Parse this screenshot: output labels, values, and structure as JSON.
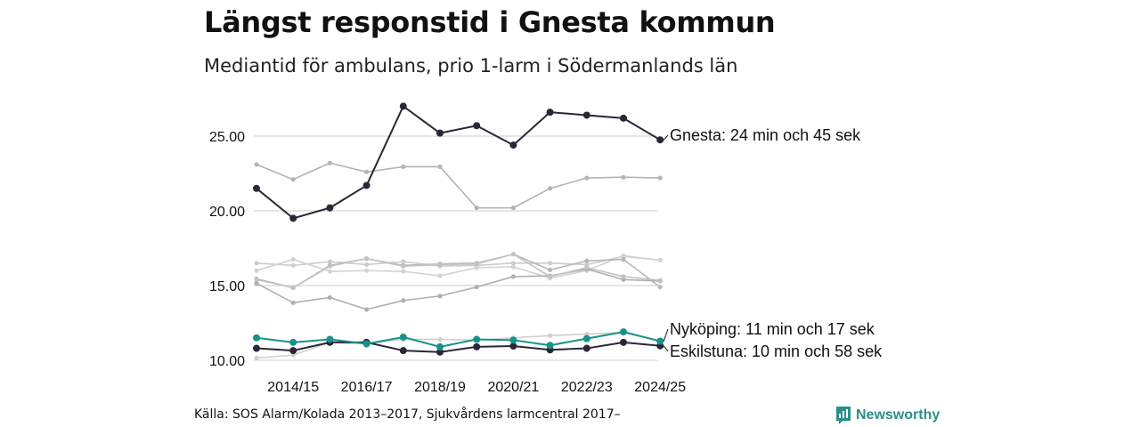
{
  "chart_data": {
    "type": "line",
    "title": "Längst responstid i Gnesta kommun",
    "subtitle": "Mediantid för ambulans, prio 1-larm i Södermanlands län",
    "xlabel": "",
    "ylabel": "",
    "ylim": [
      9.5,
      27.5
    ],
    "yticks": [
      "10.00",
      "15.00",
      "20.00",
      "25.00"
    ],
    "x": [
      "2013/14",
      "2014/15",
      "2015/16",
      "2016/17",
      "2017/18",
      "2018/19",
      "2019/20",
      "2020/21",
      "2021/22",
      "2022/23",
      "2023/24",
      "2024/25"
    ],
    "xtick_labels": [
      "2014/15",
      "2016/17",
      "2018/19",
      "2020/21",
      "2022/23",
      "2024/25"
    ],
    "highlighted": [
      {
        "name": "Gnesta",
        "label": "Gnesta: 24 min och 45 sek",
        "color": "#2a2838",
        "values": [
          21.5,
          19.5,
          20.2,
          21.7,
          27.0,
          25.2,
          25.7,
          24.4,
          26.6,
          26.4,
          26.2,
          24.75
        ]
      },
      {
        "name": "Nyköping",
        "label": "Nyköping: 11 min och 17 sek",
        "color": "#179288",
        "values": [
          11.5,
          11.2,
          11.4,
          11.1,
          11.55,
          10.9,
          11.4,
          11.35,
          11.0,
          11.45,
          11.9,
          11.28
        ]
      },
      {
        "name": "Eskilstuna",
        "label": "Eskilstuna: 10 min och 58 sek",
        "color": "#2a2838",
        "values": [
          10.8,
          10.65,
          11.2,
          11.2,
          10.65,
          10.55,
          10.9,
          10.95,
          10.7,
          10.8,
          11.2,
          10.97
        ]
      }
    ],
    "other_series": [
      {
        "values": [
          23.1,
          22.1,
          23.2,
          22.6,
          22.95,
          22.95,
          20.2,
          20.2,
          21.5,
          22.2,
          22.25,
          22.2
        ]
      },
      {
        "values": [
          16.5,
          16.35,
          16.6,
          16.4,
          16.6,
          16.3,
          16.35,
          16.5,
          16.5,
          16.4,
          16.95,
          16.7
        ]
      },
      {
        "values": [
          16.0,
          16.75,
          15.95,
          16.0,
          15.95,
          15.65,
          16.2,
          16.25,
          15.5,
          16.0,
          17.0,
          16.7
        ]
      },
      {
        "values": [
          15.45,
          14.85,
          16.35,
          16.8,
          16.35,
          16.45,
          16.5,
          17.1,
          16.05,
          16.65,
          16.75,
          14.9
        ]
      },
      {
        "values": [
          15.15,
          13.85,
          14.2,
          13.4,
          14.0,
          14.3,
          14.9,
          15.6,
          15.65,
          16.1,
          15.4,
          15.3
        ]
      },
      {
        "values": [
          15.4,
          14.85,
          16.3,
          16.8,
          16.3,
          16.4,
          16.45,
          17.1,
          15.6,
          16.2,
          15.6,
          15.35
        ]
      },
      {
        "values": [
          10.15,
          10.35,
          11.2,
          11.1,
          11.4,
          11.4,
          11.35,
          11.5,
          11.65,
          11.75,
          11.85,
          11.3
        ]
      }
    ]
  },
  "source": "Källa: SOS Alarm/Kolada 2013–2017, Sjukvårdens larmcentral 2017–",
  "brand": {
    "name": "Newsworthy",
    "color": "#2a8f87"
  }
}
